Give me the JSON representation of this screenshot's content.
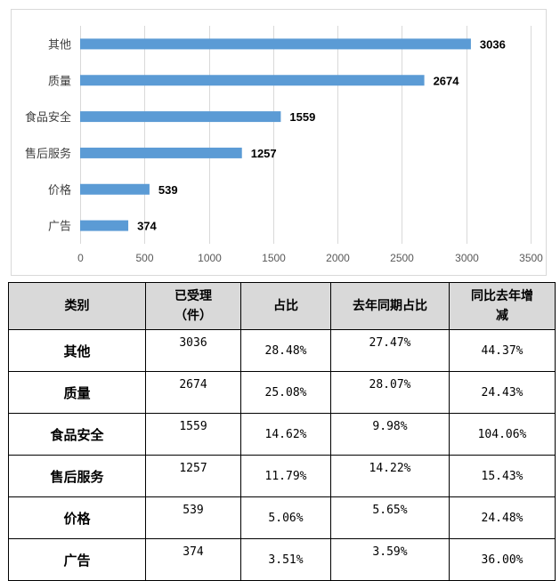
{
  "chart_data": {
    "type": "bar",
    "orientation": "horizontal",
    "categories": [
      "其他",
      "质量",
      "食品安全",
      "售后服务",
      "价格",
      "广告"
    ],
    "values": [
      3036,
      2674,
      1559,
      1257,
      539,
      374
    ],
    "x_ticks": [
      "0",
      "500",
      "1000",
      "1500",
      "2000",
      "2500",
      "3000",
      "3500"
    ],
    "xlim": [
      0,
      3500
    ],
    "grid": true,
    "bar_color": "#5b9bd5"
  },
  "table": {
    "headers": [
      "类别",
      "已受理\n（件）",
      "占比",
      "去年同期占比",
      "同比去年增\n减"
    ],
    "rows": [
      [
        "其他",
        "3036",
        "28.48%",
        "27.47%",
        "44.37%"
      ],
      [
        "质量",
        "2674",
        "25.08%",
        "28.07%",
        "24.43%"
      ],
      [
        "食品安全",
        "1559",
        "14.62%",
        "9.98%",
        "104.06%"
      ],
      [
        "售后服务",
        "1257",
        "11.79%",
        "14.22%",
        "15.43%"
      ],
      [
        "价格",
        "539",
        "5.06%",
        "5.65%",
        "24.48%"
      ],
      [
        "广告",
        "374",
        "3.51%",
        "3.59%",
        "36.00%"
      ]
    ]
  }
}
